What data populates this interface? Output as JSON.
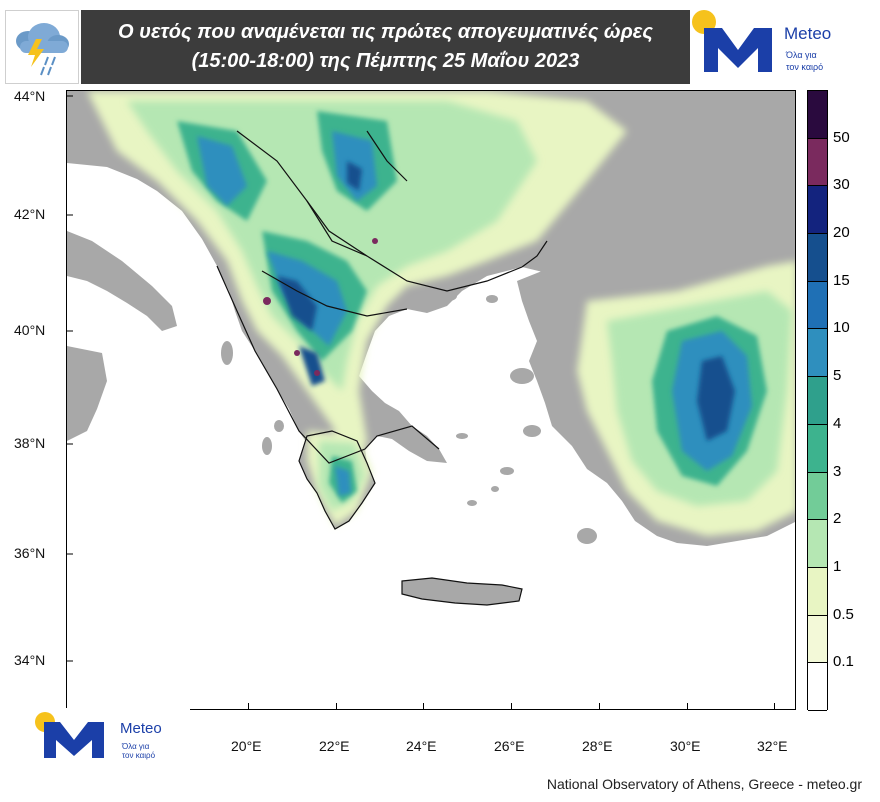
{
  "header": {
    "title_line1": "Ο υετός που αναμένεται τις πρώτες απογευματινές ώρες",
    "title_line2": "(15:00-18:00) της Πέμπτης 25 Μαΐου 2023"
  },
  "brand": {
    "name": "Meteo",
    "tagline_line1": "Όλα για",
    "tagline_line2": "τον καιρό",
    "logo_letter": "M"
  },
  "map": {
    "lat_labels": [
      "44°N",
      "42°N",
      "40°N",
      "38°N",
      "36°N",
      "34°N"
    ],
    "lon_labels": [
      "20°E",
      "22°E",
      "24°E",
      "26°E",
      "28°E",
      "30°E",
      "32°E"
    ],
    "land_color": "#a8a8a8",
    "sea_color": "#ffffff"
  },
  "legend": {
    "levels": [
      "50",
      "30",
      "20",
      "15",
      "10",
      "5",
      "4",
      "3",
      "2",
      "1",
      "0.5",
      "0.1"
    ],
    "colors": [
      "#2a0a3e",
      "#7a2a5e",
      "#13237e",
      "#154f8e",
      "#1f70b5",
      "#2f8fbe",
      "#2fa08c",
      "#3db38e",
      "#72cc98",
      "#b5e7b3",
      "#e8f5c3",
      "#f3f9d8",
      "#ffffff"
    ]
  },
  "footer": {
    "credit": "National Observatory of Athens, Greece - meteo.gr"
  },
  "icons": {
    "weather": "rain-thunder-cloud-icon"
  }
}
